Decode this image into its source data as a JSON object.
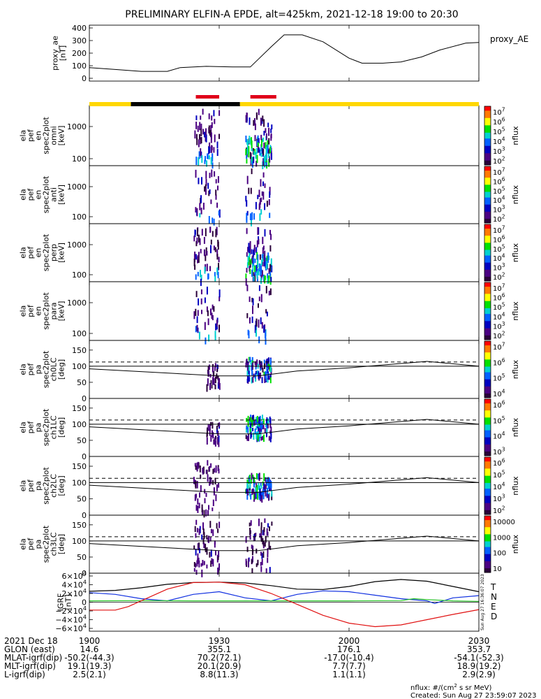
{
  "title": "PRELIMINARY ELFIN-A EPDE, alt=425km, 2021-12-18 19:00 to 20:30",
  "colors": {
    "orbit_bar_day": "#ffd700",
    "orbit_bar_night": "#000000",
    "science_zone": "#e0001a",
    "igrf_T": "#000000",
    "igrf_N": "#1030e0",
    "igrf_E": "#20c020",
    "igrf_D": "#e01010"
  },
  "chart_data": [
    {
      "type": "line",
      "id": "proxy_ae",
      "ylabel_lines": [
        "proxy_ae",
        "[nT]"
      ],
      "legend": "proxy_AE",
      "ylim": [
        0,
        400
      ],
      "yticks": [
        "400",
        "300",
        "200",
        "100",
        "0"
      ],
      "x": [
        19.0,
        19.1,
        19.2,
        19.3,
        19.35,
        19.45,
        19.55,
        19.62,
        19.7,
        19.75,
        19.82,
        19.9,
        20.0,
        20.05,
        20.13,
        20.2,
        20.28,
        20.35,
        20.45,
        20.5
      ],
      "values": [
        85,
        70,
        55,
        55,
        85,
        95,
        90,
        90,
        250,
        345,
        345,
        290,
        160,
        120,
        120,
        130,
        170,
        225,
        280,
        285
      ]
    },
    {
      "type": "heatmap",
      "id": "omni",
      "ylabel_lines": [
        "ela",
        "pef",
        "en",
        "spec2plot",
        "omni",
        "[keV]"
      ],
      "yticks": [
        "1000",
        "100"
      ],
      "colorbar_label": "nflux",
      "colorbar_ticks": [
        "10^7",
        "10^6",
        "10^5",
        "10^4",
        "10^3",
        "10^2"
      ],
      "bursts": [
        {
          "x_start": 19.4,
          "x_end": 19.5,
          "intensity": "low"
        },
        {
          "x_start": 19.6,
          "x_end": 19.7,
          "intensity": "high"
        }
      ]
    },
    {
      "type": "heatmap",
      "id": "anti",
      "ylabel_lines": [
        "ela",
        "pef",
        "en",
        "spec2plot",
        "anti",
        "[keV]"
      ],
      "yticks": [
        "1000",
        "100"
      ],
      "colorbar_label": "nflux",
      "colorbar_ticks": [
        "10^7",
        "10^6",
        "10^5",
        "10^4",
        "10^3",
        "10^2"
      ],
      "bursts": [
        {
          "x_start": 19.4,
          "x_end": 19.5,
          "intensity": "sparse"
        },
        {
          "x_start": 19.6,
          "x_end": 19.7,
          "intensity": "sparse"
        }
      ]
    },
    {
      "type": "heatmap",
      "id": "perp",
      "ylabel_lines": [
        "ela",
        "pef",
        "en",
        "spec2plot",
        "perp",
        "[keV]"
      ],
      "yticks": [
        "1000",
        "100"
      ],
      "colorbar_label": "nflux",
      "colorbar_ticks": [
        "10^7",
        "10^6",
        "10^5",
        "10^4",
        "10^3",
        "10^2"
      ],
      "bursts": [
        {
          "x_start": 19.4,
          "x_end": 19.5,
          "intensity": "low"
        },
        {
          "x_start": 19.6,
          "x_end": 19.7,
          "intensity": "high"
        }
      ]
    },
    {
      "type": "heatmap",
      "id": "para",
      "ylabel_lines": [
        "ela",
        "pef",
        "en",
        "spec2plot",
        "para",
        "[keV]"
      ],
      "yticks": [
        "1000",
        "100"
      ],
      "colorbar_label": "nflux",
      "colorbar_ticks": [
        "10^7",
        "10^6",
        "10^5",
        "10^4",
        "10^3",
        "10^2"
      ],
      "bursts": [
        {
          "x_start": 19.4,
          "x_end": 19.5,
          "intensity": "sparse"
        },
        {
          "x_start": 19.6,
          "x_end": 19.7,
          "intensity": "sparse"
        }
      ]
    },
    {
      "type": "heatmap",
      "id": "ch0LC",
      "ylabel_lines": [
        "ela",
        "pef",
        "pa",
        "spec2plot",
        "ch0LC",
        "[deg]"
      ],
      "ylim": [
        0,
        180
      ],
      "yticks": [
        "150",
        "100",
        "50",
        "0"
      ],
      "colorbar_label": "nflux",
      "colorbar_ticks": [
        "10^7",
        "10^6",
        "10^5",
        "10^4"
      ],
      "bursts": [
        {
          "x_start": 19.45,
          "x_end": 19.5,
          "intensity": "low"
        },
        {
          "x_start": 19.6,
          "x_end": 19.7,
          "intensity": "high"
        }
      ]
    },
    {
      "type": "heatmap",
      "id": "ch1LC",
      "ylabel_lines": [
        "ela",
        "pef",
        "pa",
        "spec2plot",
        "ch1LC",
        "[deg]"
      ],
      "ylim": [
        0,
        180
      ],
      "yticks": [
        "150",
        "100",
        "50",
        "0"
      ],
      "colorbar_label": "nflux",
      "colorbar_ticks": [
        "10^6",
        "10^5",
        "10^4",
        "10^3"
      ],
      "bursts": [
        {
          "x_start": 19.45,
          "x_end": 19.5,
          "intensity": "low"
        },
        {
          "x_start": 19.6,
          "x_end": 19.7,
          "intensity": "high"
        }
      ]
    },
    {
      "type": "heatmap",
      "id": "ch2LC",
      "ylabel_lines": [
        "ela",
        "pef",
        "pa",
        "spec2plot",
        "ch2LC",
        "[deg]"
      ],
      "ylim": [
        0,
        180
      ],
      "yticks": [
        "150",
        "100",
        "50",
        "0"
      ],
      "colorbar_label": "nflux",
      "colorbar_ticks": [
        "10^6",
        "10^5",
        "10^4",
        "10^3",
        "10^2"
      ],
      "bursts": [
        {
          "x_start": 19.4,
          "x_end": 19.5,
          "intensity": "sparse"
        },
        {
          "x_start": 19.6,
          "x_end": 19.7,
          "intensity": "high"
        }
      ]
    },
    {
      "type": "heatmap",
      "id": "ch3LC",
      "ylabel_lines": [
        "ela",
        "pef",
        "pa",
        "spec2plot",
        "ch3LC",
        "[deg]"
      ],
      "ylim": [
        0,
        180
      ],
      "yticks": [
        "150",
        "100",
        "50",
        "0"
      ],
      "colorbar_label": "nflux",
      "colorbar_ticks": [
        "10000",
        "1000",
        "100",
        "10"
      ],
      "bursts": [
        {
          "x_start": 19.4,
          "x_end": 19.5,
          "intensity": "sparse"
        },
        {
          "x_start": 19.6,
          "x_end": 19.7,
          "intensity": "sparse"
        }
      ]
    },
    {
      "type": "line",
      "id": "igrf",
      "ylabel_lines": [
        "IGRF",
        "[nT]"
      ],
      "ylim": [
        -60000,
        60000
      ],
      "yticks": [
        "6×10^4",
        "4×10^4",
        "2×10^4",
        "0",
        "−2×10^4",
        "−4×10^4",
        "−6×10^4"
      ],
      "legend": [
        "T",
        "N",
        "E",
        "D"
      ],
      "side_note": "Sun Aug 27 16:36:07 2023",
      "series": [
        {
          "name": "T",
          "x": [
            19.0,
            19.1,
            19.2,
            19.3,
            19.4,
            19.5,
            19.6,
            19.7,
            19.8,
            19.9,
            20.0,
            20.1,
            20.2,
            20.3,
            20.4,
            20.5
          ],
          "values": [
            25000,
            27000,
            33000,
            41000,
            45000,
            46000,
            44000,
            38000,
            30000,
            29000,
            36000,
            47000,
            52000,
            48000,
            36000,
            24000
          ]
        },
        {
          "name": "N",
          "x": [
            19.0,
            19.1,
            19.2,
            19.3,
            19.4,
            19.5,
            19.6,
            19.7,
            19.8,
            19.9,
            20.0,
            20.1,
            20.2,
            20.3,
            20.33,
            20.4,
            20.5
          ],
          "values": [
            22000,
            18000,
            8000,
            3000,
            18000,
            24000,
            10000,
            3000,
            18000,
            26000,
            24000,
            16000,
            8000,
            3000,
            -3000,
            10000,
            15000
          ]
        },
        {
          "name": "E",
          "x": [
            19.0,
            19.2,
            19.4,
            19.6,
            19.8,
            20.0,
            20.2,
            20.25,
            20.3,
            20.4,
            20.5
          ],
          "values": [
            3000,
            3500,
            3000,
            3000,
            3000,
            3000,
            3500,
            8000,
            6000,
            3000,
            2000
          ]
        },
        {
          "name": "D",
          "x": [
            19.0,
            19.1,
            19.15,
            19.3,
            19.4,
            19.5,
            19.6,
            19.7,
            19.8,
            19.9,
            20.0,
            20.1,
            20.2,
            20.3,
            20.4,
            20.5
          ],
          "values": [
            -18000,
            -18000,
            -10000,
            30000,
            45000,
            46000,
            40000,
            20000,
            -5000,
            -30000,
            -48000,
            -56000,
            -52000,
            -40000,
            -28000,
            -17000
          ]
        }
      ]
    }
  ],
  "x_axis": {
    "xlim": [
      19.0,
      20.5
    ],
    "ticks": [
      {
        "x": 19.0,
        "label": "1900"
      },
      {
        "x": 19.5,
        "label": "1930"
      },
      {
        "x": 20.0,
        "label": "2000"
      },
      {
        "x": 20.5,
        "label": "2030"
      }
    ]
  },
  "orbit_bar": [
    {
      "x_start": 19.0,
      "x_end": 19.16,
      "state": "day"
    },
    {
      "x_start": 19.16,
      "x_end": 19.58,
      "state": "night"
    },
    {
      "x_start": 19.58,
      "x_end": 20.5,
      "state": "day"
    }
  ],
  "science_zones": [
    {
      "x_start": 19.41,
      "x_end": 19.5
    },
    {
      "x_start": 19.62,
      "x_end": 19.72
    }
  ],
  "ephemeris": {
    "rows": [
      {
        "label": "2021 Dec 18",
        "values": [
          "1900",
          "1930",
          "2000",
          "2030"
        ]
      },
      {
        "label": "GLON (east)",
        "values": [
          "14.6",
          "355.1",
          "176.1",
          "353.7"
        ]
      },
      {
        "label": "MLAT-igrf(dip)",
        "values": [
          "-50.2(-44.3)",
          "70.2(72.1)",
          "-17.0(-10.4)",
          "-54.1(-52.3)"
        ]
      },
      {
        "label": "MLT-igrf(dip)",
        "values": [
          "19.1(19.3)",
          "20.1(20.9)",
          "7.7(7.7)",
          "18.9(19.2)"
        ]
      },
      {
        "label": "L-igrf(dip)",
        "values": [
          "2.5(2.1)",
          "8.8(11.3)",
          "1.1(1.1)",
          "2.9(2.9)"
        ]
      }
    ]
  },
  "footer": {
    "units": "nflux: #/(cm^2 s sr MeV)",
    "created": "Created: Sun Aug 27 23:59:07 2023"
  }
}
